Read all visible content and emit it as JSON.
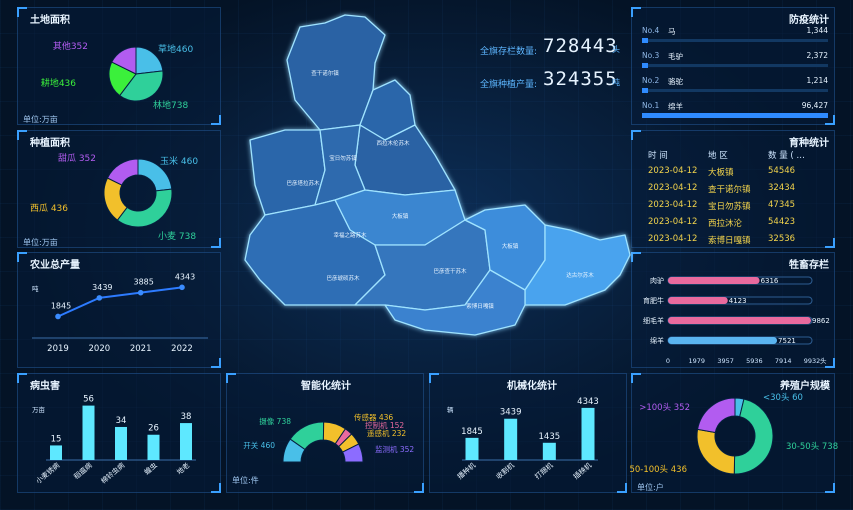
{
  "colors": {
    "purple": "#b25cf0",
    "cyan": "#49bfe8",
    "green": "#2fd09a",
    "lime": "#3bf03b",
    "yellow": "#f2c02b",
    "pink": "#e96a9e",
    "bar": "#5ee8ff",
    "line": "#2d7bff",
    "accent": "#3aa0ff"
  },
  "land": {
    "title": "土地面积",
    "unit": "单位:万亩",
    "items": [
      {
        "label": "草地460",
        "value": 460,
        "color": "#49bfe8"
      },
      {
        "label": "林地738",
        "value": 738,
        "color": "#2fd09a"
      },
      {
        "label": "耕地436",
        "value": 436,
        "color": "#3bf03b"
      },
      {
        "label": "其他352",
        "value": 352,
        "color": "#b25cf0"
      }
    ]
  },
  "plant": {
    "title": "种植面积",
    "unit": "单位:万亩",
    "items": [
      {
        "label": "玉米 460",
        "value": 460,
        "color": "#49bfe8"
      },
      {
        "label": "小麦 738",
        "value": 738,
        "color": "#2fd09a"
      },
      {
        "label": "西瓜 436",
        "value": 436,
        "color": "#f2c02b"
      },
      {
        "label": "甜瓜 352",
        "value": 352,
        "color": "#b25cf0"
      }
    ]
  },
  "output": {
    "title": "农业总产量",
    "unit": "吨",
    "chart_data": {
      "type": "line",
      "x": [
        "2019",
        "2020",
        "2021",
        "2022"
      ],
      "values": [
        1845,
        3439,
        3885,
        4343
      ],
      "ylim": [
        0,
        6000
      ]
    }
  },
  "pests": {
    "title": "病虫害",
    "unit": "万亩",
    "chart_data": {
      "type": "bar",
      "categories": [
        "小麦锈病",
        "稻瘟病",
        "棉铃虫病",
        "蝗虫",
        "地老"
      ],
      "values": [
        15,
        56,
        34,
        26,
        38
      ],
      "ylim": [
        0,
        70
      ]
    }
  },
  "smart": {
    "title": "智能化统计",
    "unit": "单位:件",
    "items": [
      {
        "label": "开关 460",
        "value": 460,
        "color": "#49bfe8"
      },
      {
        "label": "摄像 738",
        "value": 738,
        "color": "#2fd09a"
      },
      {
        "label": "传感器 436",
        "value": 436,
        "color": "#f2c02b"
      },
      {
        "label": "控制机 152",
        "value": 152,
        "color": "#e96a9e"
      },
      {
        "label": "遥感机 232",
        "value": 232,
        "color": "#f2c02b"
      },
      {
        "label": "监测机 352",
        "value": 352,
        "color": "#8c6cff"
      }
    ]
  },
  "mech": {
    "title": "机械化统计",
    "unit": "辆",
    "chart_data": {
      "type": "bar",
      "categories": [
        "播种机",
        "收割机",
        "打捆机",
        "插秧机"
      ],
      "values": [
        1845,
        3439,
        1435,
        4343
      ],
      "ylim": [
        0,
        5500
      ]
    }
  },
  "scale": {
    "title": "养殖户规模",
    "unit": "单位:户",
    "items": [
      {
        "label": "<30头 60",
        "value": 60,
        "color": "#49bfe8"
      },
      {
        "label": "30-50头 738",
        "value": 738,
        "color": "#2fd09a"
      },
      {
        "label": "50-100头 436",
        "value": 436,
        "color": "#f2c02b"
      },
      {
        "label": ">100头 352",
        "value": 352,
        "color": "#b25cf0"
      }
    ]
  },
  "stats": {
    "livestock_label": "全旗存栏数量:",
    "livestock_value": "728443",
    "livestock_unit": "头",
    "grain_label": "全旗种植产量:",
    "grain_value": "324355",
    "grain_unit": "吨"
  },
  "epidemic": {
    "title": "防疫统计",
    "items": [
      {
        "rank": "No.4",
        "name": "马",
        "value": "1,344",
        "fraction": 0.02
      },
      {
        "rank": "No.3",
        "name": "毛驴",
        "value": "2,372",
        "fraction": 0.03
      },
      {
        "rank": "No.2",
        "name": "骆驼",
        "value": "1,214",
        "fraction": 0.015
      },
      {
        "rank": "No.1",
        "name": "绵羊",
        "value": "96,427",
        "fraction": 1.0
      }
    ]
  },
  "breeding": {
    "title": "育种统计",
    "columns": [
      "时 间",
      "地 区",
      "数 量 ( …"
    ],
    "rows": [
      [
        "2023-04-12",
        "大板镇",
        "54546"
      ],
      [
        "2023-04-12",
        "查干诺尔镇",
        "32434"
      ],
      [
        "2023-04-12",
        "宝日勿苏镇",
        "47345"
      ],
      [
        "2023-04-12",
        "西拉沐沦",
        "54423"
      ],
      [
        "2023-04-12",
        "索博日嘎镇",
        "32536"
      ]
    ]
  },
  "stock": {
    "title": "牲畜存栏",
    "unit": "头",
    "chart_data": {
      "type": "bar",
      "categories": [
        "肉驴",
        "育肥牛",
        "细毛羊",
        "绵羊"
      ],
      "values": [
        6316,
        4123,
        9862,
        7521
      ],
      "xlim": [
        0,
        9932
      ],
      "ticks": [
        "0",
        "1979",
        "3957",
        "5936",
        "7914",
        "9932"
      ],
      "colors": [
        "#e96a9e",
        "#e96a9e",
        "#e96a9e",
        "#5ab4f0"
      ]
    }
  },
  "map": {
    "regions": [
      "查干诺尔镇",
      "巴彦塔拉苏木",
      "宝日勿苏镇",
      "西拉木伦苏木",
      "大板镇",
      "幸福之路苏木",
      "巴彦琥硕苏木",
      "巴彦查干苏木",
      "大板镇",
      "达古尔苏木",
      "索博日嘎镇"
    ]
  }
}
